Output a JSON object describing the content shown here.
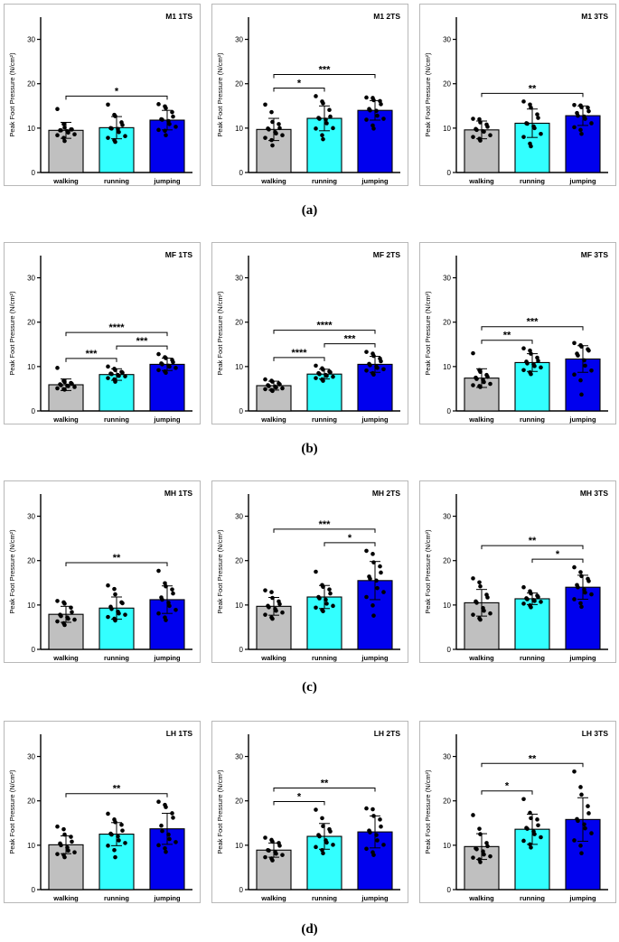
{
  "figure": {
    "row_labels": [
      "(a)",
      "(b)",
      "(c)",
      "(d)"
    ],
    "colors": {
      "walking": "#c0c0c0",
      "running": "#33ffff",
      "jumping": "#0000ee"
    }
  },
  "chart_data": [
    {
      "type": "bar",
      "title": "M1  1TS",
      "categories": [
        "walking",
        "running",
        "jumping"
      ],
      "values": [
        9.5,
        10.1,
        11.8
      ],
      "sd": [
        1.8,
        2.5,
        2.2
      ],
      "points": [
        [
          14.3,
          10.9,
          10.1,
          9.7,
          9.7,
          9.5,
          9.5,
          9.3,
          9.0,
          8.6,
          8.4,
          7.8,
          7.1
        ],
        [
          15.3,
          13.0,
          12.7,
          11.3,
          10.7,
          10.0,
          9.9,
          9.8,
          9.1,
          8.2,
          7.8,
          7.3,
          6.9
        ],
        [
          15.4,
          14.9,
          14.5,
          13.6,
          12.6,
          12.0,
          11.9,
          11.6,
          10.9,
          10.3,
          9.6,
          9.4,
          8.4
        ]
      ],
      "ylim": [
        0,
        35
      ],
      "yticks": [
        0,
        10,
        20,
        30
      ],
      "ylabel": "Peak Foot Pressure  (N/cm²)",
      "significance": [
        {
          "from": 0,
          "to": 2,
          "label": "*"
        }
      ]
    },
    {
      "type": "bar",
      "title": "M1  2TS",
      "categories": [
        "walking",
        "running",
        "jumping"
      ],
      "values": [
        9.7,
        12.2,
        14.0
      ],
      "sd": [
        2.5,
        2.8,
        2.2
      ],
      "points": [
        [
          15.3,
          13.6,
          11.4,
          10.9,
          10.0,
          9.9,
          9.7,
          9.1,
          8.8,
          8.4,
          7.8,
          7.3,
          6.1
        ],
        [
          17.2,
          16.0,
          15.6,
          14.1,
          12.6,
          12.3,
          12.1,
          11.9,
          11.1,
          10.0,
          9.9,
          8.4,
          7.5
        ],
        [
          16.9,
          16.8,
          16.3,
          16.1,
          15.4,
          14.3,
          14.0,
          13.9,
          12.8,
          12.1,
          11.9,
          10.6,
          9.9
        ]
      ],
      "ylim": [
        0,
        35
      ],
      "yticks": [
        0,
        10,
        20,
        30
      ],
      "ylabel": "Peak Foot Pressure  (N/cm²)",
      "significance": [
        {
          "from": 0,
          "to": 1,
          "label": "*"
        },
        {
          "from": 0,
          "to": 2,
          "label": "***"
        }
      ]
    },
    {
      "type": "bar",
      "title": "M1  3TS",
      "categories": [
        "walking",
        "running",
        "jumping"
      ],
      "values": [
        9.6,
        11.1,
        12.8
      ],
      "sd": [
        2.0,
        3.2,
        2.2
      ],
      "points": [
        [
          12.1,
          12.0,
          11.3,
          10.8,
          10.3,
          9.8,
          9.6,
          9.3,
          9.2,
          8.4,
          8.0,
          7.6,
          7.2
        ],
        [
          16.0,
          15.3,
          14.6,
          13.1,
          12.3,
          11.1,
          11.0,
          10.4,
          10.0,
          8.7,
          8.0,
          6.5,
          5.9
        ],
        [
          15.2,
          15.1,
          14.7,
          14.6,
          13.8,
          13.4,
          12.8,
          12.6,
          12.1,
          11.1,
          10.2,
          9.6,
          8.7
        ]
      ],
      "ylim": [
        0,
        35
      ],
      "yticks": [
        0,
        10,
        20,
        30
      ],
      "ylabel": "Peak Foot Pressure  (N/cm²)",
      "significance": [
        {
          "from": 0,
          "to": 2,
          "label": "**"
        }
      ]
    },
    {
      "type": "bar",
      "title": "MF  1TS",
      "categories": [
        "walking",
        "running",
        "jumping"
      ],
      "values": [
        5.9,
        8.2,
        10.5
      ],
      "sd": [
        1.3,
        1.3,
        1.4
      ],
      "points": [
        [
          9.7,
          6.8,
          6.5,
          6.3,
          6.1,
          6.0,
          5.8,
          5.7,
          5.6,
          5.4,
          5.1,
          4.9,
          4.8
        ],
        [
          10.0,
          9.5,
          9.2,
          8.8,
          8.6,
          8.4,
          8.3,
          8.1,
          7.9,
          7.8,
          7.4,
          7.1,
          6.6
        ],
        [
          12.8,
          12.1,
          11.9,
          11.5,
          11.0,
          10.7,
          10.5,
          10.2,
          10.0,
          9.7,
          9.2,
          8.9,
          8.6
        ]
      ],
      "ylim": [
        0,
        35
      ],
      "yticks": [
        0,
        10,
        20,
        30
      ],
      "ylabel": "Peak Foot Pressure  (N/cm²)",
      "significance": [
        {
          "from": 0,
          "to": 1,
          "label": "***"
        },
        {
          "from": 1,
          "to": 2,
          "label": "***"
        },
        {
          "from": 0,
          "to": 2,
          "label": "****"
        }
      ]
    },
    {
      "type": "bar",
      "title": "MF  2TS",
      "categories": [
        "walking",
        "running",
        "jumping"
      ],
      "values": [
        5.7,
        8.3,
        10.5
      ],
      "sd": [
        1.0,
        1.1,
        1.8
      ],
      "points": [
        [
          7.1,
          6.8,
          6.6,
          6.2,
          6.0,
          5.8,
          5.6,
          5.5,
          5.3,
          5.1,
          4.9,
          4.7,
          4.5
        ],
        [
          10.2,
          9.6,
          9.3,
          8.9,
          8.7,
          8.5,
          8.3,
          8.1,
          7.9,
          7.7,
          7.4,
          7.1,
          6.8
        ],
        [
          13.3,
          12.9,
          12.4,
          11.8,
          11.2,
          10.6,
          10.3,
          10.0,
          9.7,
          9.4,
          9.1,
          8.5,
          8.2
        ]
      ],
      "ylim": [
        0,
        35
      ],
      "yticks": [
        0,
        10,
        20,
        30
      ],
      "ylabel": "Peak Foot Pressure  (N/cm²)",
      "significance": [
        {
          "from": 0,
          "to": 1,
          "label": "****"
        },
        {
          "from": 1,
          "to": 2,
          "label": "***"
        },
        {
          "from": 0,
          "to": 2,
          "label": "****"
        }
      ]
    },
    {
      "type": "bar",
      "title": "MF  3TS",
      "categories": [
        "walking",
        "running",
        "jumping"
      ],
      "values": [
        7.4,
        10.9,
        11.7
      ],
      "sd": [
        2.1,
        2.0,
        3.0
      ],
      "points": [
        [
          13.0,
          9.2,
          8.8,
          8.1,
          7.7,
          7.5,
          7.2,
          7.0,
          6.5,
          6.1,
          5.8,
          5.6,
          5.4
        ],
        [
          14.1,
          13.6,
          12.9,
          12.0,
          11.3,
          11.1,
          10.7,
          10.5,
          10.1,
          9.8,
          9.2,
          8.7,
          8.3
        ],
        [
          15.3,
          14.8,
          14.5,
          13.9,
          13.6,
          12.9,
          12.5,
          11.4,
          10.2,
          9.1,
          8.2,
          6.9,
          3.7
        ]
      ],
      "ylim": [
        0,
        35
      ],
      "yticks": [
        0,
        10,
        20,
        30
      ],
      "ylabel": "Peak Foot Pressure  (N/cm²)",
      "significance": [
        {
          "from": 0,
          "to": 1,
          "label": "**"
        },
        {
          "from": 0,
          "to": 2,
          "label": "***"
        }
      ]
    },
    {
      "type": "bar",
      "title": "MH  1TS",
      "categories": [
        "walking",
        "running",
        "jumping"
      ],
      "values": [
        7.9,
        9.3,
        11.2
      ],
      "sd": [
        1.8,
        2.5,
        3.1
      ],
      "points": [
        [
          10.9,
          10.6,
          10.3,
          9.4,
          8.4,
          7.8,
          7.5,
          7.2,
          6.9,
          6.7,
          6.3,
          5.9,
          5.5
        ],
        [
          14.4,
          13.6,
          12.4,
          10.6,
          10.4,
          9.6,
          9.1,
          8.5,
          8.1,
          7.8,
          7.3,
          6.9,
          6.5
        ],
        [
          17.7,
          14.9,
          14.2,
          13.5,
          12.6,
          11.7,
          11.2,
          10.5,
          9.8,
          8.9,
          8.1,
          7.2,
          6.6
        ]
      ],
      "ylim": [
        0,
        35
      ],
      "yticks": [
        0,
        10,
        20,
        30
      ],
      "ylabel": "Peak Foot Pressure  (N/cm²)",
      "significance": [
        {
          "from": 0,
          "to": 2,
          "label": "**"
        }
      ]
    },
    {
      "type": "bar",
      "title": "MH  2TS",
      "categories": [
        "walking",
        "running",
        "jumping"
      ],
      "values": [
        9.7,
        11.8,
        15.5
      ],
      "sd": [
        2.0,
        2.6,
        4.3
      ],
      "points": [
        [
          13.3,
          12.9,
          11.6,
          10.8,
          10.2,
          9.8,
          9.5,
          9.1,
          8.7,
          8.3,
          7.8,
          7.2,
          6.9
        ],
        [
          17.5,
          14.5,
          14.1,
          13.5,
          12.6,
          11.8,
          11.5,
          11.2,
          10.3,
          9.8,
          9.4,
          8.9,
          8.6
        ],
        [
          22.2,
          21.5,
          19.6,
          18.7,
          17.3,
          16.4,
          15.9,
          15.5,
          13.8,
          12.9,
          11.8,
          9.9,
          7.6
        ]
      ],
      "ylim": [
        0,
        35
      ],
      "yticks": [
        0,
        10,
        20,
        30
      ],
      "ylabel": "Peak Foot Pressure  (N/cm²)",
      "significance": [
        {
          "from": 1,
          "to": 2,
          "label": "*"
        },
        {
          "from": 0,
          "to": 2,
          "label": "***"
        }
      ]
    },
    {
      "type": "bar",
      "title": "MH  3TS",
      "categories": [
        "walking",
        "running",
        "jumping"
      ],
      "values": [
        10.5,
        11.4,
        14.0
      ],
      "sd": [
        3.0,
        1.3,
        2.7
      ],
      "points": [
        [
          16.0,
          15.1,
          14.2,
          12.3,
          11.7,
          10.8,
          10.5,
          9.3,
          8.7,
          8.1,
          7.8,
          7.0,
          6.7
        ],
        [
          14.0,
          13.1,
          12.6,
          12.1,
          11.8,
          11.5,
          11.3,
          11.1,
          10.9,
          10.7,
          10.3,
          9.9,
          9.5
        ],
        [
          18.5,
          17.4,
          16.5,
          15.9,
          15.4,
          14.5,
          14.0,
          13.5,
          12.8,
          12.4,
          11.3,
          10.4,
          9.6
        ]
      ],
      "ylim": [
        0,
        35
      ],
      "yticks": [
        0,
        10,
        20,
        30
      ],
      "ylabel": "Peak Foot Pressure  (N/cm²)",
      "significance": [
        {
          "from": 1,
          "to": 2,
          "label": "*"
        },
        {
          "from": 0,
          "to": 2,
          "label": "**"
        }
      ]
    },
    {
      "type": "bar",
      "title": "LH  1TS",
      "categories": [
        "walking",
        "running",
        "jumping"
      ],
      "values": [
        10.1,
        12.5,
        13.7
      ],
      "sd": [
        2.0,
        2.6,
        3.5
      ],
      "points": [
        [
          14.2,
          13.6,
          12.4,
          11.9,
          10.8,
          10.4,
          10.0,
          9.5,
          8.8,
          8.4,
          8.0,
          7.8,
          7.3
        ],
        [
          17.1,
          15.8,
          15.2,
          14.6,
          13.3,
          12.6,
          12.4,
          12.0,
          11.1,
          10.5,
          9.9,
          8.9,
          7.3
        ],
        [
          19.8,
          19.1,
          18.6,
          17.2,
          16.2,
          14.4,
          13.2,
          12.4,
          11.4,
          10.7,
          10.0,
          9.3,
          8.5
        ]
      ],
      "ylim": [
        0,
        35
      ],
      "yticks": [
        0,
        10,
        20,
        30
      ],
      "ylabel": "Peak Foot Pressure  (N/cm²)",
      "significance": [
        {
          "from": 0,
          "to": 2,
          "label": "**"
        }
      ]
    },
    {
      "type": "bar",
      "title": "LH  2TS",
      "categories": [
        "walking",
        "running",
        "jumping"
      ],
      "values": [
        8.9,
        12.0,
        13.0
      ],
      "sd": [
        1.6,
        2.9,
        3.6
      ],
      "points": [
        [
          11.7,
          11.2,
          10.8,
          10.5,
          9.9,
          8.9,
          8.8,
          8.5,
          8.1,
          7.8,
          7.3,
          7.0,
          6.6
        ],
        [
          18.0,
          16.1,
          14.3,
          13.6,
          13.1,
          12.3,
          12.0,
          11.1,
          10.6,
          10.1,
          9.6,
          8.9,
          8.2
        ],
        [
          18.3,
          18.1,
          16.6,
          15.8,
          14.2,
          13.3,
          12.9,
          12.3,
          11.1,
          10.1,
          9.2,
          8.4,
          7.8
        ]
      ],
      "ylim": [
        0,
        35
      ],
      "yticks": [
        0,
        10,
        20,
        30
      ],
      "ylabel": "Peak Foot Pressure  (N/cm²)",
      "significance": [
        {
          "from": 0,
          "to": 1,
          "label": "*"
        },
        {
          "from": 0,
          "to": 2,
          "label": "**"
        }
      ]
    },
    {
      "type": "bar",
      "title": "LH  3TS",
      "categories": [
        "walking",
        "running",
        "jumping"
      ],
      "values": [
        9.7,
        13.6,
        15.8
      ],
      "sd": [
        2.9,
        3.4,
        4.9
      ],
      "points": [
        [
          16.8,
          13.7,
          12.5,
          10.5,
          9.8,
          9.3,
          9.1,
          8.6,
          7.9,
          7.5,
          7.2,
          6.8,
          6.2
        ],
        [
          20.4,
          17.3,
          16.1,
          15.8,
          14.5,
          13.9,
          13.7,
          13.1,
          12.5,
          11.8,
          11.0,
          10.2,
          9.5
        ],
        [
          26.6,
          23.1,
          21.4,
          18.8,
          17.2,
          15.9,
          15.5,
          14.7,
          13.8,
          12.7,
          11.1,
          9.9,
          8.2
        ]
      ],
      "ylim": [
        0,
        35
      ],
      "yticks": [
        0,
        10,
        20,
        30
      ],
      "ylabel": "Peak Foot Pressure  (N/cm²)",
      "significance": [
        {
          "from": 0,
          "to": 1,
          "label": "*"
        },
        {
          "from": 0,
          "to": 2,
          "label": "**"
        }
      ]
    }
  ]
}
